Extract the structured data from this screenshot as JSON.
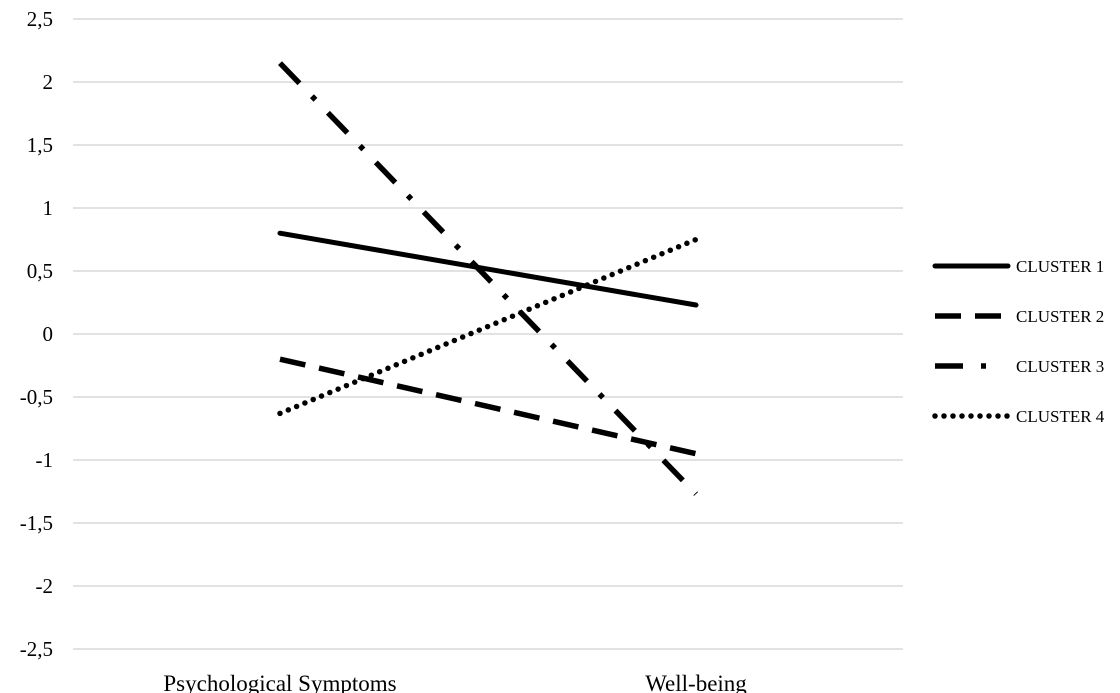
{
  "chart_data": {
    "type": "line",
    "categories": [
      "Psychological Symptoms",
      "Well-being"
    ],
    "yticks": [
      "2,5",
      "2",
      "1,5",
      "1",
      "0,5",
      "0",
      "-0,5",
      "-1",
      "-1,5",
      "-2",
      "-2,5"
    ],
    "ylim": [
      -2.5,
      2.5
    ],
    "grid": true,
    "legend_position": "right",
    "series": [
      {
        "name": "CLUSTER 1",
        "values": [
          0.8,
          0.23
        ],
        "style": "solid",
        "color": "#000000"
      },
      {
        "name": "CLUSTER 2",
        "values": [
          -0.2,
          -0.95
        ],
        "style": "dashed",
        "color": "#000000"
      },
      {
        "name": "CLUSTER 3",
        "values": [
          2.15,
          -1.27
        ],
        "style": "dash-dot",
        "color": "#000000"
      },
      {
        "name": "CLUSTER 4",
        "values": [
          -0.63,
          0.75
        ],
        "style": "dotted",
        "color": "#000000"
      }
    ]
  }
}
